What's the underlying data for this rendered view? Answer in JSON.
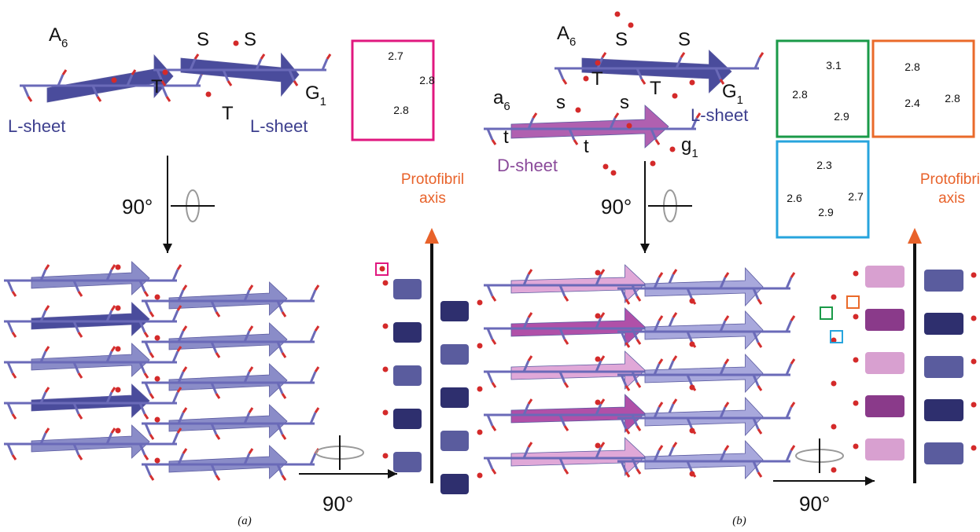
{
  "panels": [
    {
      "caption": "(a)",
      "residue_labels": [
        {
          "text": "A",
          "sub": "6"
        },
        {
          "text": "S"
        },
        {
          "text": "S"
        },
        {
          "text": "T"
        },
        {
          "text": "T"
        },
        {
          "text": "G",
          "sub": "1"
        }
      ],
      "sheet_labels": [
        "L-sheet",
        "L-sheet"
      ],
      "insets": [
        {
          "distances": [
            2.7,
            2.8,
            2.8
          ]
        }
      ],
      "rotations": [
        "90°",
        "90°"
      ],
      "axis_label": [
        "Protofibril",
        "axis"
      ]
    },
    {
      "caption": "(b)",
      "residue_labels": [
        {
          "text": "A",
          "sub": "6"
        },
        {
          "text": "S"
        },
        {
          "text": "S"
        },
        {
          "text": "T"
        },
        {
          "text": "T"
        },
        {
          "text": "G",
          "sub": "1"
        },
        {
          "text": "a",
          "sub": "6"
        },
        {
          "text": "s"
        },
        {
          "text": "s"
        },
        {
          "text": "t"
        },
        {
          "text": "t"
        },
        {
          "text": "g",
          "sub": "1"
        }
      ],
      "sheet_labels": [
        "L-sheet",
        "D-sheet"
      ],
      "insets": [
        {
          "distances": [
            3.1,
            2.8,
            2.9
          ]
        },
        {
          "distances": [
            2.8,
            2.4,
            2.8
          ]
        },
        {
          "distances": [
            2.3,
            2.6,
            2.7,
            2.9
          ]
        }
      ],
      "rotations": [
        "90°",
        "90°"
      ],
      "axis_label": [
        "Protofibril",
        "axis"
      ]
    }
  ]
}
